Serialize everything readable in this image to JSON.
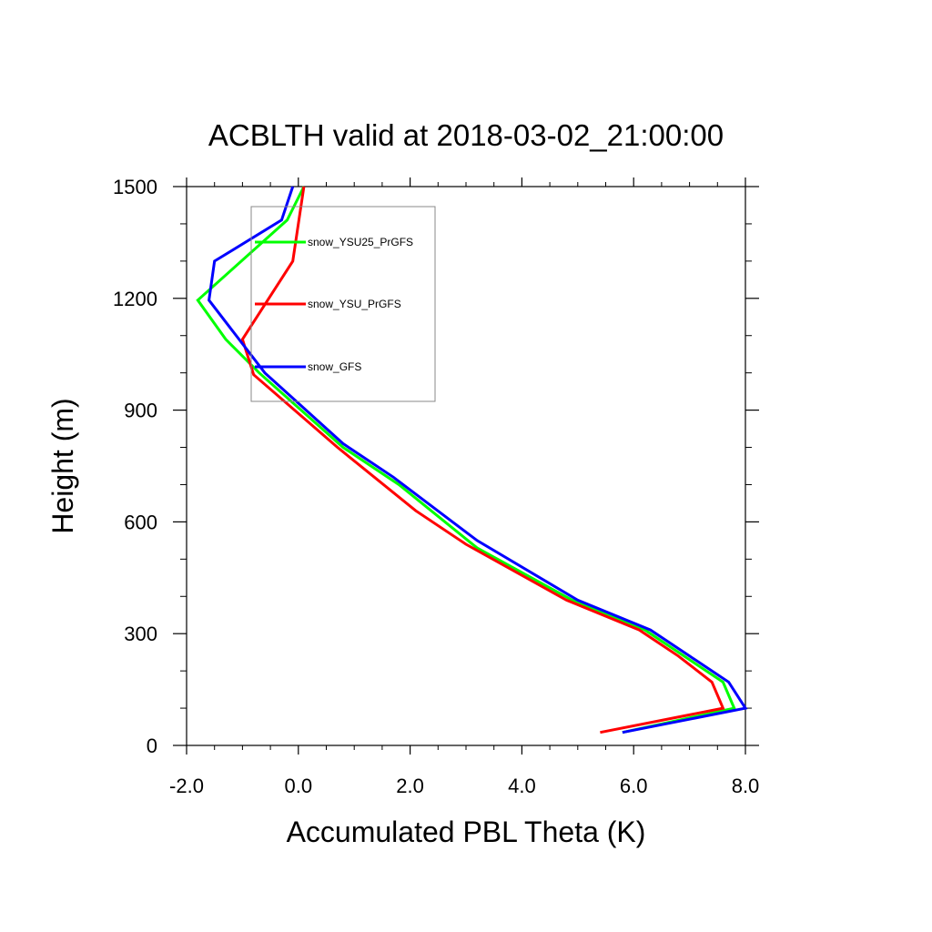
{
  "chart_data": {
    "type": "line",
    "title": "ACBLTH valid at 2018-03-02_21:00:00",
    "xlabel": "Accumulated PBL Theta (K)",
    "ylabel": "Height (m)",
    "xlim": [
      -2.0,
      8.0
    ],
    "ylim": [
      0,
      1500
    ],
    "xticks": [
      -2.0,
      0.0,
      2.0,
      4.0,
      6.0,
      8.0
    ],
    "xtick_labels": [
      "-2.0",
      "0.0",
      "2.0",
      "4.0",
      "6.0",
      "8.0"
    ],
    "yticks": [
      0,
      300,
      600,
      900,
      1200,
      1500
    ],
    "ytick_labels": [
      "0",
      "300",
      "600",
      "900",
      "1200",
      "1500"
    ],
    "grid": false,
    "legend": {
      "placement": "upper-left",
      "border": true
    },
    "series": [
      {
        "name": "snow_YSU25_PrGFS",
        "color": "#00ff00",
        "points": [
          [
            5.8,
            35
          ],
          [
            7.8,
            100
          ],
          [
            7.6,
            170
          ],
          [
            6.9,
            240
          ],
          [
            6.2,
            310
          ],
          [
            4.9,
            390
          ],
          [
            3.2,
            530
          ],
          [
            1.8,
            700
          ],
          [
            0.8,
            800
          ],
          [
            -0.7,
            1000
          ],
          [
            -1.3,
            1090
          ],
          [
            -1.8,
            1195
          ],
          [
            -0.2,
            1410
          ],
          [
            0.1,
            1500
          ]
        ]
      },
      {
        "name": "snow_YSU_PrGFS",
        "color": "#ff0000",
        "points": [
          [
            5.4,
            35
          ],
          [
            7.6,
            100
          ],
          [
            7.4,
            170
          ],
          [
            6.8,
            240
          ],
          [
            6.1,
            310
          ],
          [
            4.8,
            390
          ],
          [
            3.0,
            540
          ],
          [
            2.1,
            630
          ],
          [
            0.7,
            800
          ],
          [
            -0.8,
            995
          ],
          [
            -1.0,
            1090
          ],
          [
            -0.1,
            1300
          ],
          [
            0.1,
            1500
          ]
        ]
      },
      {
        "name": "snow_GFS",
        "color": "#0000ff",
        "points": [
          [
            5.8,
            35
          ],
          [
            8.0,
            100
          ],
          [
            7.7,
            170
          ],
          [
            7.0,
            240
          ],
          [
            6.3,
            310
          ],
          [
            5.0,
            390
          ],
          [
            3.2,
            550
          ],
          [
            1.7,
            720
          ],
          [
            0.8,
            810
          ],
          [
            -0.6,
            1000
          ],
          [
            -1.6,
            1195
          ],
          [
            -1.5,
            1300
          ],
          [
            -0.3,
            1410
          ],
          [
            -0.1,
            1500
          ]
        ]
      }
    ]
  }
}
